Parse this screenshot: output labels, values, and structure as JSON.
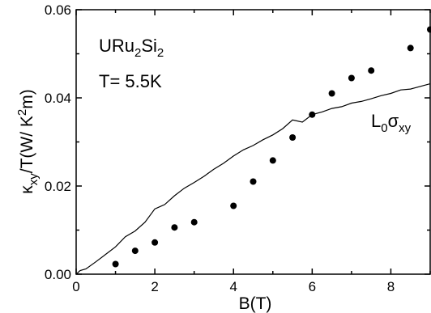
{
  "chart_data": {
    "type": "scatter",
    "xlabel": "B(T)",
    "ylabel": {
      "kappa": "κ",
      "sub": "xy",
      "rest": "/T(W/ K",
      "sup": "2",
      "tail": "m)"
    },
    "xlim": [
      0,
      9
    ],
    "ylim": [
      0,
      0.06
    ],
    "xticks": [
      0,
      2,
      4,
      6,
      8
    ],
    "yticks": [
      0.0,
      0.02,
      0.04,
      0.06
    ],
    "ytick_labels": [
      "0.00",
      "0.02",
      "0.04",
      "0.06"
    ],
    "annotations": {
      "compound": {
        "U": "URu",
        "sub1": "2",
        "Si": "Si",
        "sub2": "2"
      },
      "temperature": "T= 5.5K",
      "curve_label": {
        "L": "L",
        "sub0": "0",
        "sigma": "σ",
        "subxy": "xy"
      }
    },
    "series": [
      {
        "kind": "points",
        "marker": "filled-circle",
        "color": "#000000",
        "x": [
          1.0,
          1.5,
          2.0,
          2.5,
          3.0,
          4.0,
          4.5,
          5.0,
          5.5,
          6.0,
          6.5,
          7.0,
          7.5,
          8.5,
          9.0
        ],
        "y": [
          0.0023,
          0.0053,
          0.0072,
          0.0106,
          0.0118,
          0.0155,
          0.021,
          0.0258,
          0.031,
          0.0362,
          0.041,
          0.0445,
          0.0462,
          0.0513,
          0.0555
        ]
      },
      {
        "kind": "line",
        "color": "#000000",
        "x": [
          0.0,
          0.1,
          0.25,
          0.5,
          0.75,
          1.0,
          1.25,
          1.5,
          1.75,
          2.0,
          2.25,
          2.5,
          2.75,
          3.0,
          3.25,
          3.5,
          3.75,
          4.0,
          4.25,
          4.5,
          4.75,
          5.0,
          5.25,
          5.5,
          5.75,
          6.0,
          6.25,
          6.5,
          6.75,
          7.0,
          7.25,
          7.5,
          7.75,
          8.0,
          8.25,
          8.5,
          8.75,
          9.0
        ],
        "y": [
          0.0,
          0.0008,
          0.0012,
          0.0028,
          0.0045,
          0.0062,
          0.0085,
          0.0098,
          0.0118,
          0.0148,
          0.0158,
          0.0178,
          0.0195,
          0.0208,
          0.0222,
          0.0238,
          0.0252,
          0.0268,
          0.0282,
          0.0292,
          0.0305,
          0.0316,
          0.033,
          0.035,
          0.0345,
          0.0362,
          0.0368,
          0.0376,
          0.038,
          0.0388,
          0.0392,
          0.0398,
          0.0405,
          0.041,
          0.0418,
          0.042,
          0.0426,
          0.0432
        ]
      }
    ]
  }
}
